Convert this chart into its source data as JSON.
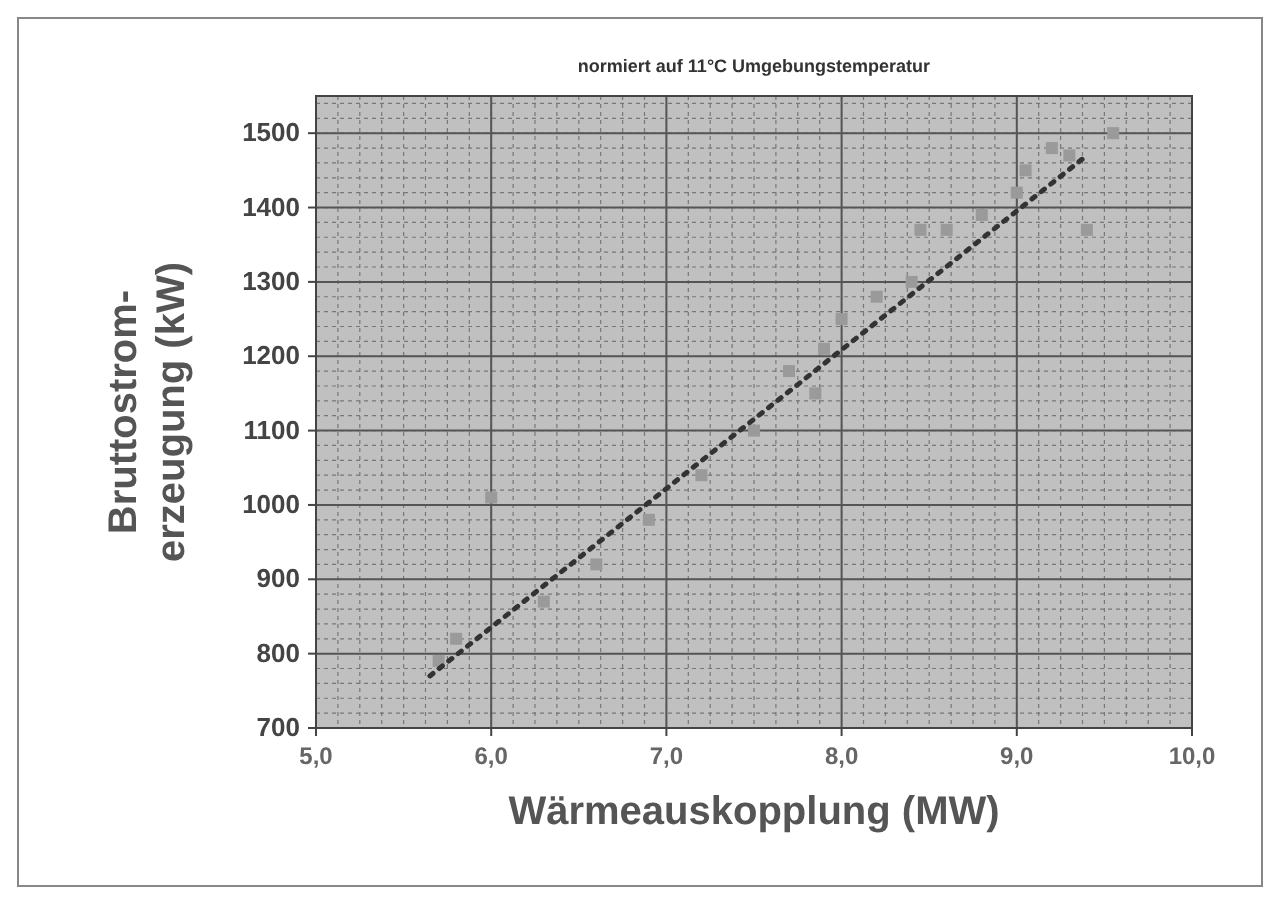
{
  "chart_data": {
    "type": "scatter",
    "title": "normiert auf 11°C Umgebungstemperatur",
    "xlabel": "Wärmeauskopplung (MW)",
    "ylabel": "Bruttostrom-\nerzeugung (kW)",
    "xlim": [
      5,
      10
    ],
    "xticks": [
      {
        "value": 5,
        "label": "5,0"
      },
      {
        "value": 6,
        "label": "6,0"
      },
      {
        "value": 7,
        "label": "7,0"
      },
      {
        "value": 8,
        "label": "8,0"
      },
      {
        "value": 9,
        "label": "9,0"
      },
      {
        "value": 10,
        "label": "10,0"
      }
    ],
    "ylim": [
      700,
      1550
    ],
    "yticks": [
      700,
      800,
      900,
      1000,
      1100,
      1200,
      1300,
      1400,
      1500
    ],
    "grid": true,
    "series": [
      {
        "marker": "square",
        "color": "#9a9a9a",
        "x": [
          5.7,
          5.8,
          6.0,
          6.3,
          6.6,
          6.9,
          7.2,
          7.5,
          7.7,
          7.85,
          7.9,
          8.0,
          8.2,
          8.4,
          8.45,
          8.6,
          8.8,
          9.0,
          9.05,
          9.2,
          9.3,
          9.4,
          9.55
        ],
        "values": [
          790,
          820,
          1010,
          870,
          920,
          980,
          1040,
          1100,
          1180,
          1150,
          1210,
          1250,
          1280,
          1300,
          1370,
          1370,
          1390,
          1420,
          1450,
          1480,
          1470,
          1370,
          1500
        ]
      },
      {
        "type": "line",
        "marker": "none",
        "line_style": "dotted",
        "color": "#333333",
        "x": [
          5.65,
          9.4
        ],
        "values": [
          770,
          1470
        ]
      }
    ]
  }
}
